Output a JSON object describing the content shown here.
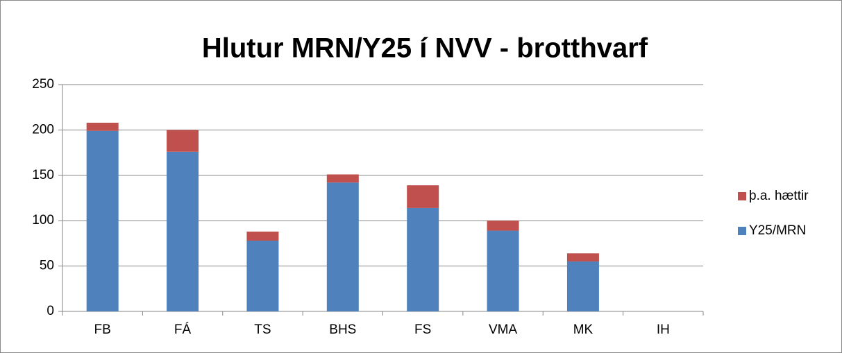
{
  "chart_data": {
    "type": "stacked_bar",
    "title": "Hlutur MRN/Y25 í NVV - brotthvarf",
    "categories": [
      "FB",
      "FÁ",
      "TS",
      "BHS",
      "FS",
      "VMA",
      "MK",
      "IH"
    ],
    "series": [
      {
        "name": "Y25/MRN",
        "color": "#4f81bd",
        "values": [
          199,
          176,
          78,
          142,
          114,
          89,
          55,
          0
        ]
      },
      {
        "name": "þ.a. hættir",
        "color": "#c0504d",
        "values": [
          9,
          24,
          10,
          9,
          25,
          11,
          9,
          0
        ]
      }
    ],
    "ylim": [
      0,
      250
    ],
    "yticks": [
      0,
      50,
      100,
      150,
      200,
      250
    ],
    "grid": true,
    "legend": "right"
  }
}
